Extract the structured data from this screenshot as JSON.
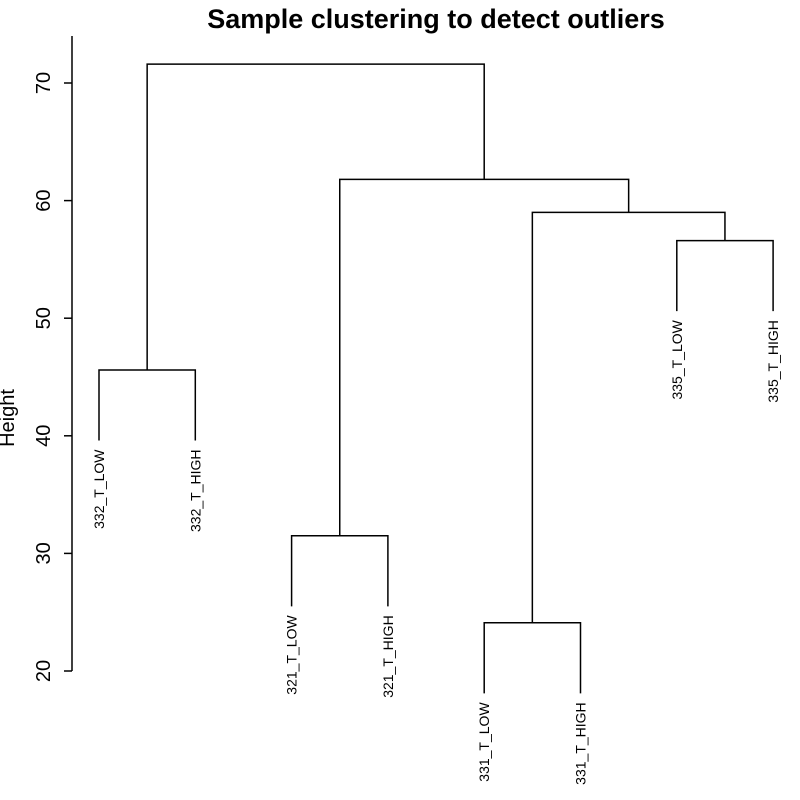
{
  "chart_data": {
    "type": "dendrogram",
    "title": "Sample clustering to detect outliers",
    "ylabel": "Height",
    "xlabel": "",
    "ylim": [
      20,
      72
    ],
    "yticks": [
      20,
      30,
      40,
      50,
      60,
      70
    ],
    "grid": false,
    "leaf_hang": 6,
    "leaves": [
      {
        "label": "332_T_LOW",
        "order": 1
      },
      {
        "label": "332_T_HIGH",
        "order": 2
      },
      {
        "label": "321_T_LOW",
        "order": 3
      },
      {
        "label": "321_T_HIGH",
        "order": 4
      },
      {
        "label": "331_T_LOW",
        "order": 5
      },
      {
        "label": "331_T_HIGH",
        "order": 6
      },
      {
        "label": "335_T_LOW",
        "order": 7
      },
      {
        "label": "335_T_HIGH",
        "order": 8
      }
    ],
    "merges": [
      {
        "id": "m1",
        "left": "L1",
        "right": "L2",
        "height": 45.6
      },
      {
        "id": "m2",
        "left": "L3",
        "right": "L4",
        "height": 31.5
      },
      {
        "id": "m3",
        "left": "L5",
        "right": "L6",
        "height": 24.1
      },
      {
        "id": "m4",
        "left": "L7",
        "right": "L8",
        "height": 56.6
      },
      {
        "id": "m5",
        "left": "m3",
        "right": "m4",
        "height": 59.0
      },
      {
        "id": "m6",
        "left": "m2",
        "right": "m5",
        "height": 61.8
      },
      {
        "id": "m7",
        "left": "m1",
        "right": "m6",
        "height": 71.6
      }
    ]
  }
}
